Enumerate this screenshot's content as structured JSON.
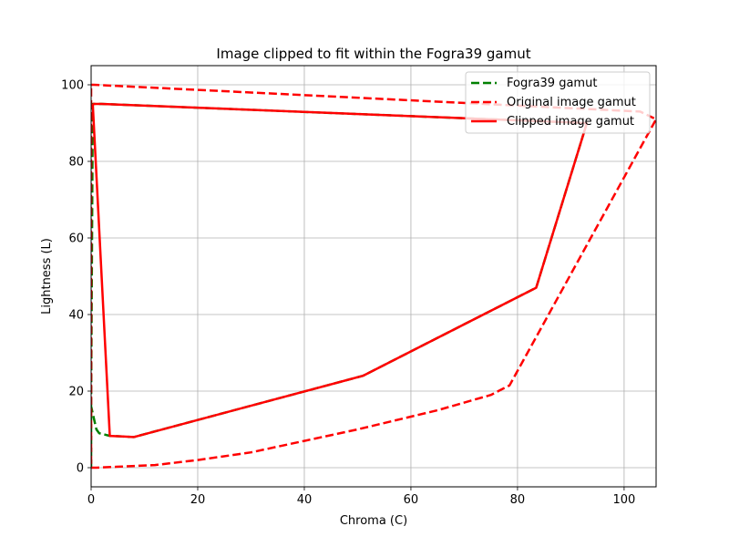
{
  "chart_data": {
    "type": "line",
    "title": "Image clipped to fit within the Fogra39 gamut",
    "xlabel": "Chroma (C)",
    "ylabel": "Lightness (L)",
    "xlim": [
      0,
      106
    ],
    "ylim": [
      -5,
      105
    ],
    "xticks": [
      0,
      20,
      40,
      60,
      80,
      100
    ],
    "yticks": [
      0,
      20,
      40,
      60,
      80,
      100
    ],
    "grid": true,
    "legend_position": "top-right",
    "series": [
      {
        "name": "Fogra39 gamut",
        "color": "#008000",
        "style": "dashed",
        "points": [
          [
            0,
            0
          ],
          [
            0,
            16
          ],
          [
            1,
            10
          ],
          [
            1.5,
            9
          ],
          [
            3.5,
            8.3
          ],
          [
            8,
            8
          ],
          [
            51,
            24
          ],
          [
            83.5,
            47
          ],
          [
            93,
            90
          ],
          [
            2,
            95
          ],
          [
            0.3,
            95
          ],
          [
            0,
            16
          ]
        ]
      },
      {
        "name": "Original image gamut",
        "color": "#ff0000",
        "style": "dashed",
        "points": [
          [
            0,
            0
          ],
          [
            1,
            0
          ],
          [
            12,
            0.7
          ],
          [
            20,
            2
          ],
          [
            30,
            4
          ],
          [
            40,
            7
          ],
          [
            50,
            10
          ],
          [
            65,
            15
          ],
          [
            75,
            19
          ],
          [
            78.5,
            21.5
          ],
          [
            106,
            91
          ],
          [
            103,
            93
          ],
          [
            0.5,
            100
          ],
          [
            0,
            100
          ],
          [
            0,
            0
          ]
        ]
      },
      {
        "name": "Clipped image gamut",
        "color": "#ff0000",
        "style": "solid",
        "points": [
          [
            0.3,
            95
          ],
          [
            2,
            95
          ],
          [
            93,
            90
          ],
          [
            83.5,
            47
          ],
          [
            51,
            24
          ],
          [
            8,
            8
          ],
          [
            3.5,
            8.3
          ],
          [
            0.3,
            95
          ]
        ]
      }
    ]
  }
}
